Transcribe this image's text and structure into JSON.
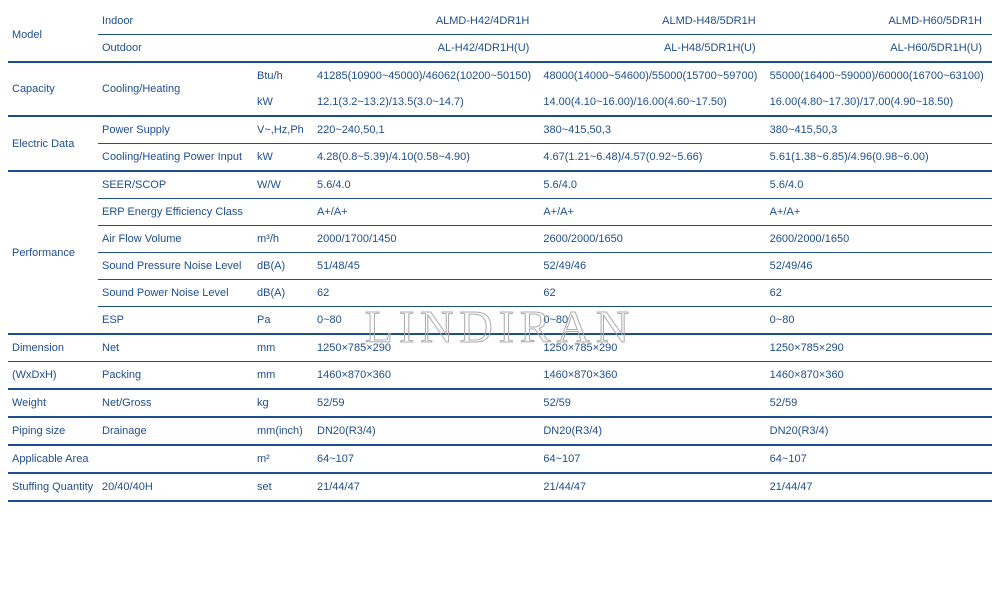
{
  "watermark": "LINDIRAN",
  "headers": {
    "model": "Model",
    "indoor": "Indoor",
    "outdoor": "Outdoor",
    "indoor_vals": [
      "ALMD-H42/4DR1H",
      "ALMD-H48/5DR1H",
      "ALMD-H60/5DR1H"
    ],
    "outdoor_vals": [
      "AL-H42/4DR1H(U)",
      "AL-H48/5DR1H(U)",
      "AL-H60/5DR1H(U)"
    ]
  },
  "sections": {
    "capacity": {
      "label": "Capacity",
      "rows": [
        {
          "param": "Cooling/Heating",
          "unit": "Btu/h",
          "vals": [
            "41285(10900~45000)/46062(10200~50150)",
            "48000(14000~54600)/55000(15700~59700)",
            "55000(16400~59000)/60000(16700~63100)"
          ]
        },
        {
          "param": "",
          "unit": "kW",
          "vals": [
            "12.1(3.2~13.2)/13.5(3.0~14.7)",
            "14.00(4.10~16.00)/16.00(4.60~17.50)",
            "16.00(4.80~17.30)/17.00(4.90~18.50)"
          ]
        }
      ]
    },
    "electric": {
      "label": "Electric Data",
      "rows": [
        {
          "param": "Power Supply",
          "unit": "V~,Hz,Ph",
          "vals": [
            "220~240,50,1",
            "380~415,50,3",
            "380~415,50,3"
          ]
        },
        {
          "param": "Cooling/Heating Power Input",
          "unit": "kW",
          "vals": [
            "4.28(0.8~5.39)/4.10(0.58~4.90)",
            "4.67(1.21~6.48)/4.57(0.92~5.66)",
            "5.61(1.38~6.85)/4.96(0.98~6.00)"
          ]
        }
      ]
    },
    "performance": {
      "label": "Performance",
      "rows": [
        {
          "param": "SEER/SCOP",
          "unit": "W/W",
          "vals": [
            "5.6/4.0",
            "5.6/4.0",
            "5.6/4.0"
          ]
        },
        {
          "param": "ERP Energy Efficiency Class",
          "unit": "",
          "vals": [
            "A+/A+",
            "A+/A+",
            "A+/A+"
          ]
        },
        {
          "param": "Air Flow Volume",
          "unit": "m³/h",
          "vals": [
            "2000/1700/1450",
            "2600/2000/1650",
            "2600/2000/1650"
          ]
        },
        {
          "param": "Sound Pressure Noise Level",
          "unit": "dB(A)",
          "vals": [
            "51/48/45",
            "52/49/46",
            "52/49/46"
          ]
        },
        {
          "param": "Sound Power Noise Level",
          "unit": "dB(A)",
          "vals": [
            "62",
            "62",
            "62"
          ]
        },
        {
          "param": "ESP",
          "unit": "Pa",
          "vals": [
            "0~80",
            "0~80",
            "0~80"
          ]
        }
      ]
    },
    "dimension": {
      "label1": "Dimension",
      "label2": "(WxDxH)",
      "rows": [
        {
          "param": "Net",
          "unit": "mm",
          "vals": [
            "1250×785×290",
            "1250×785×290",
            "1250×785×290"
          ]
        },
        {
          "param": "Packing",
          "unit": "mm",
          "vals": [
            "1460×870×360",
            "1460×870×360",
            "1460×870×360"
          ]
        }
      ]
    },
    "weight": {
      "label": "Weight",
      "param": "Net/Gross",
      "unit": "kg",
      "vals": [
        "52/59",
        "52/59",
        "52/59"
      ]
    },
    "piping": {
      "label": "Piping size",
      "param": "Drainage",
      "unit": "mm(inch)",
      "vals": [
        "DN20(R3/4)",
        "DN20(R3/4)",
        "DN20(R3/4)"
      ]
    },
    "area": {
      "label": "Applicable Area",
      "param": "",
      "unit": "m²",
      "vals": [
        "64~107",
        "64~107",
        "64~107"
      ]
    },
    "stuffing": {
      "label": "Stuffing Quantity",
      "param": "20/40/40H",
      "unit": "set",
      "vals": [
        "21/44/47",
        "21/44/47",
        "21/44/47"
      ]
    }
  }
}
